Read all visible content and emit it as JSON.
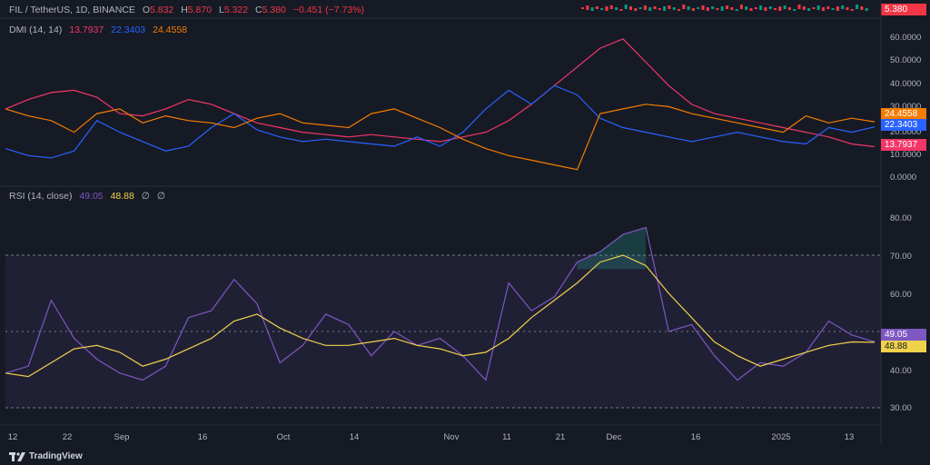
{
  "symbol": {
    "name": "FIL / TetherUS, 1D, BINANCE",
    "open_label": "O",
    "open": "5.832",
    "high_label": "H",
    "high": "5.870",
    "low_label": "L",
    "low": "5.322",
    "close_label": "C",
    "close": "5.380",
    "change": "−0.451 (−7.73%)",
    "price_tag": "5.380"
  },
  "dmi": {
    "title": "DMI (14, 14)",
    "v1": "13.7937",
    "v2": "22.3403",
    "v3": "24.4558",
    "colors": {
      "minus": "#f23668",
      "plus": "#2962ff",
      "adx": "#f57c00"
    },
    "axis": [
      "60.0000",
      "50.0000",
      "40.0000",
      "30.0000",
      "20.0000",
      "10.0000",
      "0.0000"
    ],
    "tags": [
      "24.4558",
      "22.3403",
      "13.7937"
    ]
  },
  "rsi": {
    "title": "RSI (14, close)",
    "v1": "49.05",
    "v2": "48.88",
    "na1": "∅",
    "na2": "∅",
    "colors": {
      "rsi": "#7e57c2",
      "ma": "#f0d24b"
    },
    "axis": [
      "80.00",
      "70.00",
      "60.00",
      "50.00",
      "40.00",
      "30.00"
    ],
    "tags": [
      "49.05",
      "48.88"
    ]
  },
  "time_axis": [
    "12",
    "22",
    "Sep",
    "16",
    "Oct",
    "14",
    "Nov",
    "11",
    "21",
    "Dec",
    "16",
    "2025",
    "13"
  ],
  "brand": "TradingView",
  "chart_data": [
    {
      "type": "line",
      "title": "DMI (14, 14)",
      "ylim": [
        0,
        65
      ],
      "series": [
        {
          "name": "-DI",
          "values": [
            30,
            34,
            37,
            38,
            35,
            28,
            27,
            30,
            34,
            32,
            28,
            24,
            22,
            20,
            19,
            18,
            19,
            18,
            17,
            16,
            18,
            20,
            25,
            32,
            40,
            48,
            56,
            60,
            50,
            40,
            32,
            28,
            26,
            24,
            22,
            20,
            18,
            15,
            13.8
          ]
        },
        {
          "name": "+DI",
          "values": [
            13,
            10,
            9,
            12,
            25,
            20,
            16,
            12,
            14,
            22,
            28,
            21,
            18,
            16,
            17,
            16,
            15,
            14,
            18,
            14,
            20,
            30,
            38,
            32,
            40,
            36,
            26,
            22,
            20,
            18,
            16,
            18,
            20,
            18,
            16,
            15,
            22,
            20,
            22.3
          ]
        },
        {
          "name": "ADX",
          "values": [
            30,
            27,
            25,
            20,
            28,
            30,
            24,
            27,
            25,
            24,
            22,
            26,
            28,
            24,
            23,
            22,
            28,
            30,
            26,
            22,
            17,
            13,
            10,
            8,
            6,
            4,
            28,
            30,
            32,
            31,
            28,
            26,
            24,
            22,
            20,
            27,
            24,
            26,
            24.5
          ]
        }
      ]
    },
    {
      "type": "line",
      "title": "RSI (14, close)",
      "ylim": [
        30,
        85
      ],
      "series": [
        {
          "name": "RSI",
          "values": [
            40,
            42,
            61,
            50,
            44,
            40,
            38,
            42,
            56,
            58,
            67,
            60,
            43,
            48,
            57,
            54,
            45,
            52,
            48,
            50,
            45,
            38,
            66,
            58,
            62,
            72,
            75,
            80,
            82,
            52,
            54,
            45,
            38,
            43,
            42,
            46,
            55,
            51,
            49.05
          ]
        },
        {
          "name": "MA",
          "values": [
            40,
            39,
            43,
            47,
            48,
            46,
            42,
            44,
            47,
            50,
            55,
            57,
            53,
            50,
            48,
            48,
            49,
            50,
            48,
            47,
            45,
            46,
            50,
            56,
            61,
            66,
            72,
            74,
            71,
            63,
            56,
            49,
            45,
            42,
            44,
            46,
            48,
            49,
            48.88
          ]
        }
      ]
    }
  ]
}
